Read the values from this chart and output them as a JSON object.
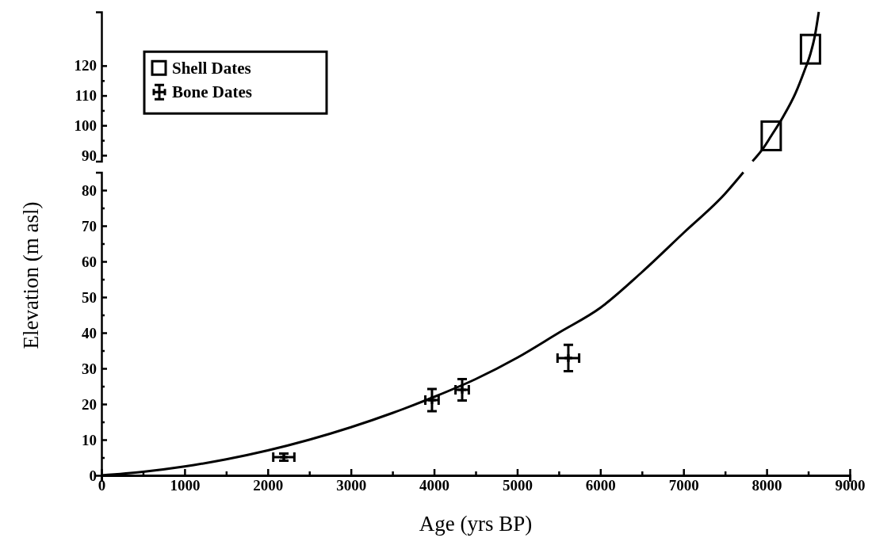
{
  "chart_data": [
    {
      "type": "scatter",
      "xlim": [
        0,
        9000
      ],
      "ylim": [
        88,
        138
      ],
      "yticks": [
        90,
        {
          "value": 95,
          "label": null
        },
        100,
        {
          "value": 105,
          "label": null
        },
        110,
        {
          "value": 115,
          "label": null
        },
        120
      ],
      "tick_labels": "y",
      "legend": "left",
      "series": [
        {
          "name": "Shell Dates",
          "marker": "square",
          "color": "#000000",
          "x": [
            8055,
            8527
          ],
          "values": [
            96.5,
            125.5
          ]
        },
        {
          "type": "line",
          "color": "#000000",
          "x": [
            7830,
            7950,
            8055,
            8200,
            8350,
            8450,
            8527,
            8580,
            8627
          ],
          "values": [
            88,
            92,
            96.5,
            103,
            111,
            118,
            124,
            130,
            138
          ]
        }
      ]
    },
    {
      "type": "scatter",
      "xlabel": "Age (yrs BP)",
      "ylabel": "Elevation (m asl)",
      "xlim": [
        0,
        9000
      ],
      "ylim": [
        0,
        85
      ],
      "xticks": [
        0,
        {
          "value": 500,
          "label": null
        },
        1000,
        {
          "value": 1500,
          "label": null
        },
        2000,
        {
          "value": 2500,
          "label": null
        },
        3000,
        {
          "value": 3500,
          "label": null
        },
        4000,
        {
          "value": 4500,
          "label": null
        },
        5000,
        {
          "value": 5500,
          "label": null
        },
        6000,
        {
          "value": 6500,
          "label": null
        },
        7000,
        {
          "value": 7500,
          "label": null
        },
        8000,
        {
          "value": 8500,
          "label": null
        },
        9000
      ],
      "yticks": [
        0,
        {
          "value": 5,
          "label": null
        },
        10,
        {
          "value": 15,
          "label": null
        },
        20,
        {
          "value": 25,
          "label": null
        },
        30,
        {
          "value": 35,
          "label": null
        },
        40,
        {
          "value": 45,
          "label": null
        },
        50,
        {
          "value": 55,
          "label": null
        },
        60,
        {
          "value": 65,
          "label": null
        },
        70,
        {
          "value": 75,
          "label": null
        },
        80
      ],
      "series": [
        {
          "name": "Bone Dates",
          "marker": "cross",
          "color": "#000000",
          "x": [
            2193,
            3975,
            4338,
            5615
          ],
          "values": [
            5.1,
            21.1,
            24.0,
            32.9
          ],
          "errors": [
            1,
            3.1,
            3,
            3.7
          ],
          "xerrors": [
            127,
            80,
            80,
            130
          ]
        },
        {
          "type": "line",
          "color": "#000000",
          "x": [
            0,
            500,
            1000,
            1500,
            2000,
            2500,
            3000,
            3500,
            4000,
            4500,
            5000,
            5500,
            6000,
            6500,
            7000,
            7500,
            7720
          ],
          "values": [
            0,
            1,
            2.5,
            4.5,
            7,
            10,
            13.5,
            17.5,
            22,
            27,
            33,
            40,
            47,
            57,
            68,
            79,
            85
          ]
        }
      ]
    }
  ]
}
